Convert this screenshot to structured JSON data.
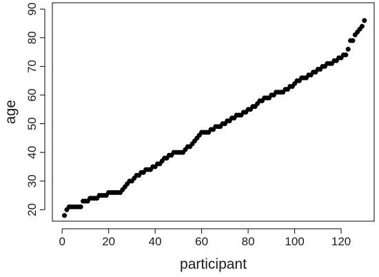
{
  "chart_data": {
    "type": "scatter",
    "title": "",
    "xlabel": "participant",
    "ylabel": "age",
    "xlim": [
      -4.2,
      134.2
    ],
    "ylim": [
      16.0,
      92.2
    ],
    "xticks": [
      0,
      20,
      40,
      60,
      80,
      100,
      120
    ],
    "yticks": [
      20,
      30,
      40,
      50,
      60,
      70,
      80,
      90
    ],
    "grid": false,
    "legend": "none",
    "marker_color": "#000000",
    "x": [
      1,
      2,
      3,
      4,
      5,
      6,
      7,
      8,
      9,
      10,
      11,
      12,
      13,
      14,
      15,
      16,
      17,
      18,
      19,
      20,
      21,
      22,
      23,
      24,
      25,
      26,
      27,
      28,
      29,
      30,
      31,
      32,
      33,
      34,
      35,
      36,
      37,
      38,
      39,
      40,
      41,
      42,
      43,
      44,
      45,
      46,
      47,
      48,
      49,
      50,
      51,
      52,
      53,
      54,
      55,
      56,
      57,
      58,
      59,
      60,
      61,
      62,
      63,
      64,
      65,
      66,
      67,
      68,
      69,
      70,
      71,
      72,
      73,
      74,
      75,
      76,
      77,
      78,
      79,
      80,
      81,
      82,
      83,
      84,
      85,
      86,
      87,
      88,
      89,
      90,
      91,
      92,
      93,
      94,
      95,
      96,
      97,
      98,
      99,
      100,
      101,
      102,
      103,
      104,
      105,
      106,
      107,
      108,
      109,
      110,
      111,
      112,
      113,
      114,
      115,
      116,
      117,
      118,
      119,
      120,
      121,
      122,
      123,
      124,
      125,
      126,
      127,
      128,
      129,
      130
    ],
    "y": [
      18,
      20,
      21,
      21,
      21,
      21,
      21,
      21,
      23,
      23,
      23,
      24,
      24,
      24,
      24,
      25,
      25,
      25,
      25,
      26,
      26,
      26,
      26,
      26,
      26,
      27,
      28,
      29,
      30,
      30,
      31,
      32,
      32,
      33,
      33,
      34,
      34,
      34,
      35,
      35,
      36,
      36,
      37,
      38,
      38,
      39,
      39,
      40,
      40,
      40,
      40,
      40,
      41,
      42,
      42,
      43,
      44,
      45,
      46,
      47,
      47,
      47,
      47,
      48,
      48,
      49,
      49,
      49,
      50,
      50,
      51,
      51,
      52,
      52,
      53,
      53,
      53,
      54,
      54,
      55,
      55,
      56,
      56,
      57,
      58,
      58,
      59,
      59,
      59,
      60,
      60,
      61,
      61,
      61,
      61,
      62,
      62,
      63,
      63,
      64,
      65,
      65,
      66,
      66,
      66,
      67,
      67,
      68,
      68,
      69,
      69,
      70,
      70,
      71,
      71,
      71,
      72,
      72,
      73,
      73,
      74,
      74,
      76,
      79,
      79,
      81,
      82,
      83,
      84,
      86
    ]
  }
}
